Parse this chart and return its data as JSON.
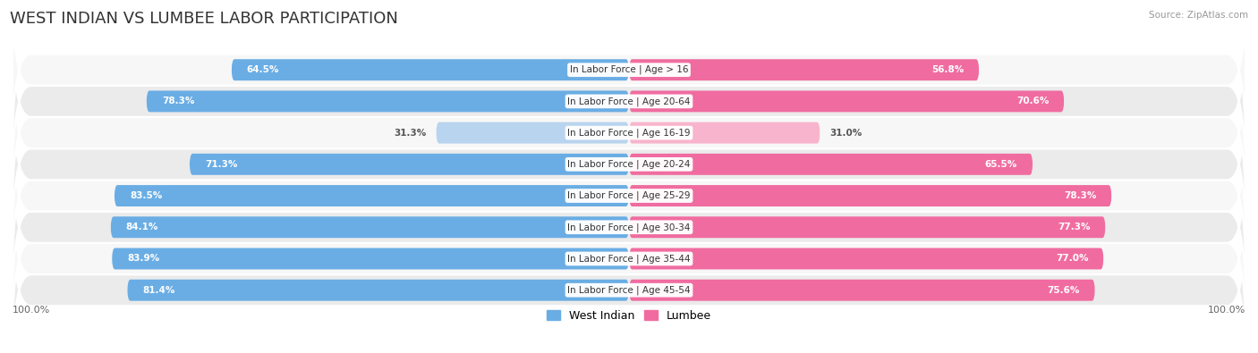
{
  "title": "WEST INDIAN VS LUMBEE LABOR PARTICIPATION",
  "source": "Source: ZipAtlas.com",
  "categories": [
    "In Labor Force | Age > 16",
    "In Labor Force | Age 20-64",
    "In Labor Force | Age 16-19",
    "In Labor Force | Age 20-24",
    "In Labor Force | Age 25-29",
    "In Labor Force | Age 30-34",
    "In Labor Force | Age 35-44",
    "In Labor Force | Age 45-54"
  ],
  "west_indian": [
    64.5,
    78.3,
    31.3,
    71.3,
    83.5,
    84.1,
    83.9,
    81.4
  ],
  "lumbee": [
    56.8,
    70.6,
    31.0,
    65.5,
    78.3,
    77.3,
    77.0,
    75.6
  ],
  "west_indian_color": "#6aade4",
  "lumbee_color": "#f06ca0",
  "west_indian_light_color": "#b8d4ee",
  "lumbee_light_color": "#f8b4cc",
  "row_bg_even": "#ebebeb",
  "row_bg_odd": "#f7f7f7",
  "max_value": 100.0,
  "title_fontsize": 13,
  "label_fontsize": 7.5,
  "value_fontsize": 7.5,
  "legend_fontsize": 9,
  "fig_bg_color": "#ffffff"
}
